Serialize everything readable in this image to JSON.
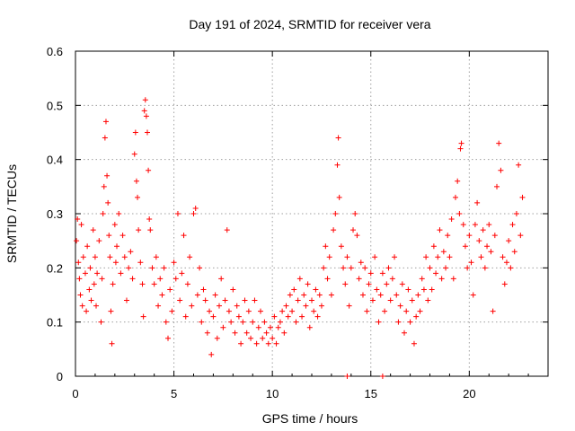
{
  "chart_data": {
    "type": "scatter",
    "title": "Day 191 of 2024, SRMTID for receiver vera",
    "xlabel": "GPS time / hours",
    "ylabel": "SRMTID / TECUs",
    "xlim": [
      0,
      24
    ],
    "ylim": [
      0,
      0.6
    ],
    "xticks": [
      0,
      5,
      10,
      15,
      20
    ],
    "yticks": [
      0,
      0.1,
      0.2,
      0.3,
      0.4,
      0.5,
      0.6
    ],
    "xtick_labels": [
      "0",
      "5",
      "10",
      "15",
      "20"
    ],
    "ytick_labels": [
      "0",
      "0.1",
      "0.2",
      "0.3",
      "0.4",
      "0.5",
      "0.6"
    ],
    "grid": true,
    "marker": "plus",
    "color": "#ff0000",
    "series": [
      {
        "name": "SRMTID",
        "points": [
          [
            0.05,
            0.25
          ],
          [
            0.1,
            0.29
          ],
          [
            0.15,
            0.21
          ],
          [
            0.2,
            0.18
          ],
          [
            0.25,
            0.15
          ],
          [
            0.3,
            0.28
          ],
          [
            0.35,
            0.13
          ],
          [
            0.4,
            0.22
          ],
          [
            0.5,
            0.19
          ],
          [
            0.55,
            0.12
          ],
          [
            0.6,
            0.24
          ],
          [
            0.7,
            0.16
          ],
          [
            0.75,
            0.2
          ],
          [
            0.8,
            0.14
          ],
          [
            0.9,
            0.27
          ],
          [
            0.95,
            0.17
          ],
          [
            1.0,
            0.22
          ],
          [
            1.05,
            0.13
          ],
          [
            1.1,
            0.19
          ],
          [
            1.2,
            0.25
          ],
          [
            1.3,
            0.1
          ],
          [
            1.35,
            0.18
          ],
          [
            1.4,
            0.3
          ],
          [
            1.45,
            0.35
          ],
          [
            1.5,
            0.44
          ],
          [
            1.55,
            0.47
          ],
          [
            1.6,
            0.37
          ],
          [
            1.65,
            0.32
          ],
          [
            1.7,
            0.26
          ],
          [
            1.75,
            0.22
          ],
          [
            1.8,
            0.12
          ],
          [
            1.85,
            0.06
          ],
          [
            1.9,
            0.17
          ],
          [
            2.0,
            0.28
          ],
          [
            2.05,
            0.21
          ],
          [
            2.1,
            0.24
          ],
          [
            2.2,
            0.3
          ],
          [
            2.3,
            0.19
          ],
          [
            2.4,
            0.26
          ],
          [
            2.5,
            0.22
          ],
          [
            2.6,
            0.14
          ],
          [
            2.7,
            0.2
          ],
          [
            2.8,
            0.23
          ],
          [
            2.9,
            0.18
          ],
          [
            3.0,
            0.41
          ],
          [
            3.05,
            0.45
          ],
          [
            3.1,
            0.36
          ],
          [
            3.15,
            0.33
          ],
          [
            3.2,
            0.27
          ],
          [
            3.3,
            0.21
          ],
          [
            3.4,
            0.17
          ],
          [
            3.45,
            0.11
          ],
          [
            3.5,
            0.49
          ],
          [
            3.55,
            0.51
          ],
          [
            3.6,
            0.48
          ],
          [
            3.65,
            0.45
          ],
          [
            3.7,
            0.38
          ],
          [
            3.75,
            0.29
          ],
          [
            3.8,
            0.27
          ],
          [
            3.9,
            0.2
          ],
          [
            4.0,
            0.17
          ],
          [
            4.1,
            0.22
          ],
          [
            4.2,
            0.13
          ],
          [
            4.3,
            0.18
          ],
          [
            4.4,
            0.15
          ],
          [
            4.5,
            0.2
          ],
          [
            4.6,
            0.1
          ],
          [
            4.7,
            0.07
          ],
          [
            4.8,
            0.16
          ],
          [
            4.9,
            0.12
          ],
          [
            5.0,
            0.21
          ],
          [
            5.1,
            0.18
          ],
          [
            5.2,
            0.3
          ],
          [
            5.3,
            0.14
          ],
          [
            5.4,
            0.19
          ],
          [
            5.5,
            0.26
          ],
          [
            5.6,
            0.11
          ],
          [
            5.7,
            0.17
          ],
          [
            5.8,
            0.22
          ],
          [
            5.9,
            0.13
          ],
          [
            6.0,
            0.3
          ],
          [
            6.1,
            0.31
          ],
          [
            6.2,
            0.15
          ],
          [
            6.3,
            0.2
          ],
          [
            6.4,
            0.1
          ],
          [
            6.5,
            0.16
          ],
          [
            6.6,
            0.14
          ],
          [
            6.7,
            0.08
          ],
          [
            6.8,
            0.12
          ],
          [
            6.9,
            0.04
          ],
          [
            7.0,
            0.11
          ],
          [
            7.1,
            0.15
          ],
          [
            7.2,
            0.07
          ],
          [
            7.3,
            0.13
          ],
          [
            7.4,
            0.18
          ],
          [
            7.5,
            0.09
          ],
          [
            7.6,
            0.14
          ],
          [
            7.7,
            0.27
          ],
          [
            7.8,
            0.12
          ],
          [
            7.9,
            0.1
          ],
          [
            8.0,
            0.16
          ],
          [
            8.1,
            0.08
          ],
          [
            8.2,
            0.13
          ],
          [
            8.3,
            0.11
          ],
          [
            8.4,
            0.06
          ],
          [
            8.5,
            0.1
          ],
          [
            8.6,
            0.14
          ],
          [
            8.7,
            0.08
          ],
          [
            8.8,
            0.12
          ],
          [
            8.9,
            0.07
          ],
          [
            9.0,
            0.1
          ],
          [
            9.1,
            0.14
          ],
          [
            9.2,
            0.06
          ],
          [
            9.3,
            0.09
          ],
          [
            9.4,
            0.12
          ],
          [
            9.5,
            0.07
          ],
          [
            9.6,
            0.1
          ],
          [
            9.7,
            0.08
          ],
          [
            9.8,
            0.06
          ],
          [
            9.9,
            0.09
          ],
          [
            10.0,
            0.07
          ],
          [
            10.1,
            0.11
          ],
          [
            10.2,
            0.06
          ],
          [
            10.3,
            0.09
          ],
          [
            10.4,
            0.1
          ],
          [
            10.5,
            0.12
          ],
          [
            10.6,
            0.08
          ],
          [
            10.7,
            0.13
          ],
          [
            10.8,
            0.11
          ],
          [
            10.9,
            0.15
          ],
          [
            11.0,
            0.12
          ],
          [
            11.1,
            0.16
          ],
          [
            11.2,
            0.1
          ],
          [
            11.3,
            0.14
          ],
          [
            11.4,
            0.18
          ],
          [
            11.5,
            0.11
          ],
          [
            11.6,
            0.15
          ],
          [
            11.7,
            0.13
          ],
          [
            11.8,
            0.17
          ],
          [
            11.9,
            0.09
          ],
          [
            12.0,
            0.14
          ],
          [
            12.1,
            0.12
          ],
          [
            12.2,
            0.16
          ],
          [
            12.3,
            0.11
          ],
          [
            12.4,
            0.15
          ],
          [
            12.5,
            0.13
          ],
          [
            12.6,
            0.2
          ],
          [
            12.7,
            0.24
          ],
          [
            12.8,
            0.18
          ],
          [
            12.9,
            0.22
          ],
          [
            13.0,
            0.15
          ],
          [
            13.1,
            0.27
          ],
          [
            13.2,
            0.3
          ],
          [
            13.3,
            0.39
          ],
          [
            13.35,
            0.44
          ],
          [
            13.4,
            0.33
          ],
          [
            13.5,
            0.24
          ],
          [
            13.6,
            0.2
          ],
          [
            13.7,
            0.17
          ],
          [
            13.8,
            0.22
          ],
          [
            13.9,
            0.13
          ],
          [
            14.0,
            0.2
          ],
          [
            14.1,
            0.27
          ],
          [
            14.2,
            0.3
          ],
          [
            14.3,
            0.26
          ],
          [
            14.4,
            0.18
          ],
          [
            14.5,
            0.21
          ],
          [
            14.6,
            0.15
          ],
          [
            14.7,
            0.2
          ],
          [
            14.8,
            0.12
          ],
          [
            14.9,
            0.17
          ],
          [
            15.0,
            0.19
          ],
          [
            15.1,
            0.14
          ],
          [
            15.2,
            0.22
          ],
          [
            15.3,
            0.16
          ],
          [
            15.4,
            0.1
          ],
          [
            15.5,
            0.15
          ],
          [
            15.6,
            0.19
          ],
          [
            15.7,
            0.12
          ],
          [
            15.8,
            0.17
          ],
          [
            15.9,
            0.2
          ],
          [
            16.0,
            0.14
          ],
          [
            16.1,
            0.18
          ],
          [
            16.2,
            0.22
          ],
          [
            16.3,
            0.15
          ],
          [
            16.4,
            0.1
          ],
          [
            16.5,
            0.13
          ],
          [
            16.6,
            0.17
          ],
          [
            16.7,
            0.08
          ],
          [
            16.8,
            0.12
          ],
          [
            16.9,
            0.16
          ],
          [
            17.0,
            0.1
          ],
          [
            17.1,
            0.14
          ],
          [
            17.2,
            0.06
          ],
          [
            17.3,
            0.11
          ],
          [
            17.4,
            0.15
          ],
          [
            17.5,
            0.12
          ],
          [
            17.6,
            0.18
          ],
          [
            17.7,
            0.16
          ],
          [
            17.8,
            0.22
          ],
          [
            17.9,
            0.14
          ],
          [
            18.0,
            0.2
          ],
          [
            18.1,
            0.16
          ],
          [
            18.2,
            0.24
          ],
          [
            18.3,
            0.19
          ],
          [
            18.4,
            0.22
          ],
          [
            18.5,
            0.27
          ],
          [
            18.6,
            0.18
          ],
          [
            18.7,
            0.23
          ],
          [
            18.8,
            0.2
          ],
          [
            18.9,
            0.26
          ],
          [
            19.0,
            0.22
          ],
          [
            19.1,
            0.29
          ],
          [
            19.2,
            0.18
          ],
          [
            19.3,
            0.33
          ],
          [
            19.4,
            0.36
          ],
          [
            19.5,
            0.3
          ],
          [
            19.55,
            0.42
          ],
          [
            19.6,
            0.43
          ],
          [
            19.7,
            0.28
          ],
          [
            19.8,
            0.24
          ],
          [
            19.9,
            0.2
          ],
          [
            20.0,
            0.26
          ],
          [
            20.1,
            0.21
          ],
          [
            20.2,
            0.15
          ],
          [
            20.3,
            0.28
          ],
          [
            20.4,
            0.32
          ],
          [
            20.5,
            0.25
          ],
          [
            20.6,
            0.22
          ],
          [
            20.7,
            0.27
          ],
          [
            20.8,
            0.2
          ],
          [
            20.9,
            0.24
          ],
          [
            21.0,
            0.28
          ],
          [
            21.1,
            0.23
          ],
          [
            21.2,
            0.12
          ],
          [
            21.3,
            0.26
          ],
          [
            21.4,
            0.35
          ],
          [
            21.5,
            0.43
          ],
          [
            21.6,
            0.38
          ],
          [
            21.7,
            0.22
          ],
          [
            21.8,
            0.17
          ],
          [
            21.9,
            0.21
          ],
          [
            22.0,
            0.25
          ],
          [
            22.1,
            0.2
          ],
          [
            22.2,
            0.28
          ],
          [
            22.3,
            0.23
          ],
          [
            22.4,
            0.3
          ],
          [
            22.5,
            0.39
          ],
          [
            22.6,
            0.26
          ],
          [
            22.7,
            0.33
          ],
          [
            13.8,
            0.0
          ],
          [
            15.6,
            0.0
          ]
        ]
      }
    ]
  }
}
